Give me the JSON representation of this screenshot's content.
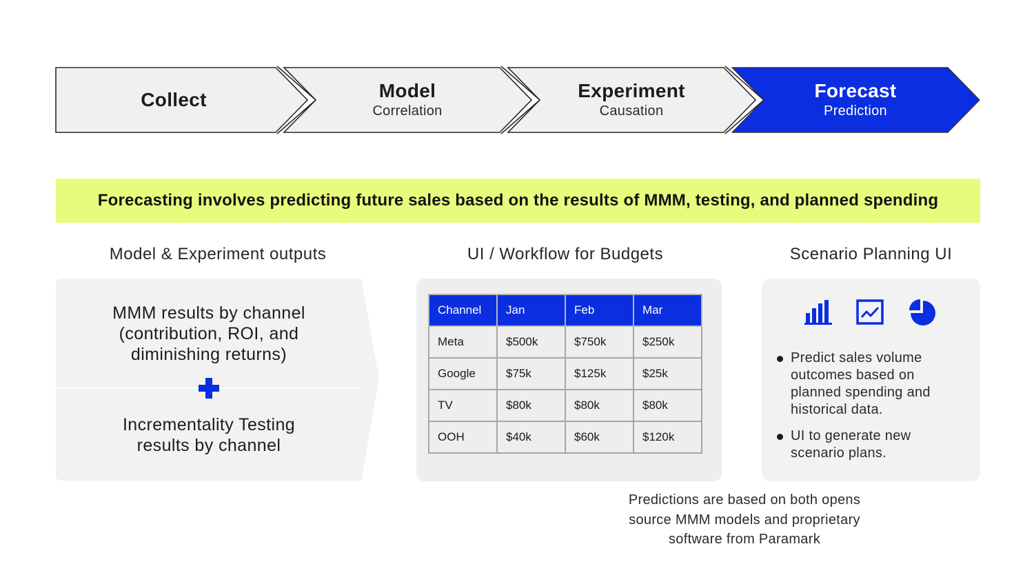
{
  "process": {
    "steps": [
      {
        "title": "Collect",
        "subtitle": ""
      },
      {
        "title": "Model",
        "subtitle": "Correlation"
      },
      {
        "title": "Experiment",
        "subtitle": "Causation"
      },
      {
        "title": "Forecast",
        "subtitle": "Prediction",
        "active": true
      }
    ]
  },
  "banner": {
    "text": "Forecasting involves predicting future sales based on the results of MMM, testing, and planned spending"
  },
  "sections": {
    "left": {
      "heading": "Model & Experiment outputs",
      "item1": "MMM results by channel (contribution, ROI, and diminishing returns)",
      "item2": "Incrementality Testing results by channel"
    },
    "middle": {
      "heading": "UI / Workflow for Budgets",
      "table": {
        "headers": [
          "Channel",
          "Jan",
          "Feb",
          "Mar"
        ],
        "rows": [
          [
            "Meta",
            "$500k",
            "$750k",
            "$250k"
          ],
          [
            "Google",
            "$75k",
            "$125k",
            "$25k"
          ],
          [
            "TV",
            "$80k",
            "$80k",
            "$80k"
          ],
          [
            "OOH",
            "$40k",
            "$60k",
            "$120k"
          ]
        ]
      }
    },
    "right": {
      "heading": "Scenario Planning UI",
      "icons": [
        "bar-chart-icon",
        "line-chart-icon",
        "pie-chart-icon"
      ],
      "bullets": [
        "Predict sales volume outcomes based on planned spending and historical data.",
        "UI to generate new scenario plans."
      ]
    }
  },
  "footnote": {
    "line1": "Predictions are based on both opens",
    "line2": "source MMM models and proprietary",
    "line3": "software from Paramark"
  },
  "colors": {
    "accent": "#0a2ee0",
    "highlight": "#e8fb7c",
    "panel": "#f2f2f2",
    "chevron": "#f0f0f0"
  }
}
